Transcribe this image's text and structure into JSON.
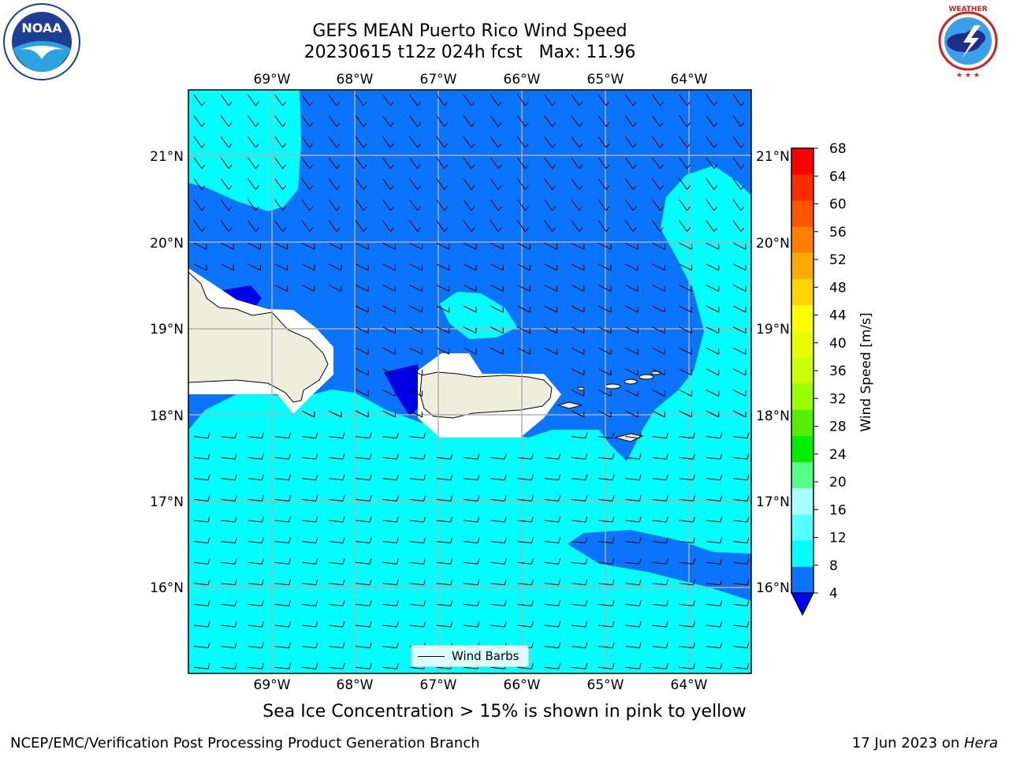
{
  "header": {
    "title_line1": "GEFS MEAN Puerto Rico Wind Speed",
    "title_line2": "20230615 t12z 024h fcst   Max: 11.96"
  },
  "logos": {
    "left": {
      "icon": "noaa-logo-icon",
      "text": "NOAA"
    },
    "right": {
      "icon": "nws-logo-icon",
      "text": "NATIONAL WEATHER SERVICE"
    }
  },
  "map": {
    "lon_ticks": [
      "69°W",
      "68°W",
      "67°W",
      "66°W",
      "65°W",
      "64°W"
    ],
    "lat_ticks": [
      "21°N",
      "20°N",
      "19°N",
      "18°N",
      "17°N",
      "16°N"
    ],
    "legend_label": "Wind Barbs",
    "colors": {
      "land": "#eeeedd",
      "band_4_8": "#0a74ff",
      "band_8_12": "#00ffff",
      "band_below_4": "#0000e6",
      "grid": "#b0b0b0"
    }
  },
  "colorbar": {
    "label": "Wind Speed [m/s]",
    "ticks": [
      "68",
      "64",
      "60",
      "56",
      "52",
      "48",
      "44",
      "40",
      "36",
      "32",
      "28",
      "24",
      "20",
      "16",
      "12",
      "8",
      "4"
    ],
    "colors": [
      "#ff0000",
      "#ff2b00",
      "#ff5500",
      "#ff8000",
      "#ffaa00",
      "#ffd500",
      "#ffff00",
      "#e6ff00",
      "#ccff00",
      "#99ff00",
      "#55ee00",
      "#00ee00",
      "#55ff88",
      "#aaffff",
      "#55ffff",
      "#00ffff",
      "#0a74ff"
    ],
    "extend_color": "#0000ff"
  },
  "caption": "Sea Ice Concentration > 15% is shown in pink to yellow",
  "footer": {
    "left": "NCEP/EMC/Verification Post Processing Product Generation Branch",
    "right_prefix": "17 Jun 2023 on ",
    "right_host": "Hera"
  }
}
